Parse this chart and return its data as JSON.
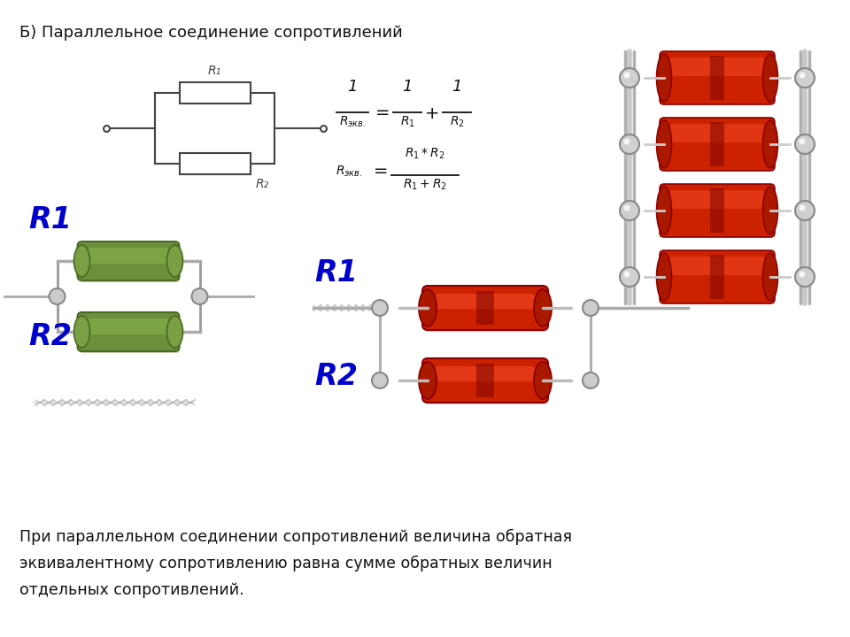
{
  "bg_color": "#ffffff",
  "title": "Б) Параллельное соединение сопротивлений",
  "bottom_text_line1": "При параллельном соединении сопротивлений величина обратная",
  "bottom_text_line2": "эквивалентному сопротивлению равна сумме обратных величин",
  "bottom_text_line3": "отдельных сопротивлений.",
  "r1_label": "R1",
  "r2_label": "R2",
  "label_color": "#0000cc",
  "circuit_line_color": "#444444",
  "text_color": "#111111"
}
